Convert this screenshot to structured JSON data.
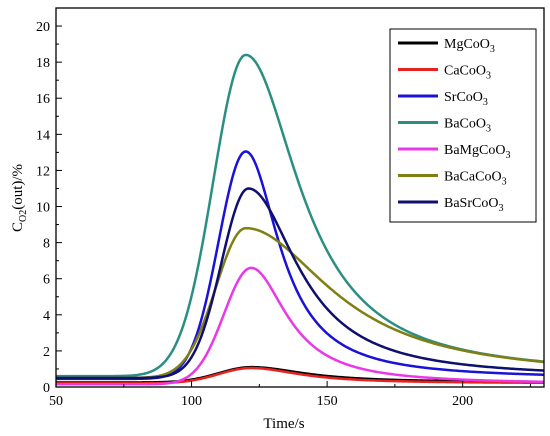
{
  "chart_data": {
    "type": "line",
    "xlabel": "Time/s",
    "ylabel_main": "C",
    "ylabel_sub": "O2",
    "ylabel_rest": "(out)/%",
    "xlim": [
      50,
      230
    ],
    "ylim": [
      0,
      21
    ],
    "xticks": [
      50,
      100,
      150,
      200
    ],
    "yticks": [
      0,
      2,
      4,
      6,
      8,
      10,
      12,
      14,
      16,
      18,
      20
    ],
    "grid": false,
    "legend_position": "top-right",
    "series": [
      {
        "name_main": "MgCoO",
        "name_sub": "3",
        "color": "#000000",
        "baseline": 0.25,
        "peak": 1.1,
        "center": 122,
        "left_width": 12,
        "tail": 24
      },
      {
        "name_main": "CaCoO",
        "name_sub": "3",
        "color": "#e8221e",
        "baseline": 0.2,
        "peak": 1.05,
        "center": 122,
        "left_width": 12,
        "tail": 22
      },
      {
        "name_main": "SrCoO",
        "name_sub": "3",
        "color": "#1a12d8",
        "baseline": 0.45,
        "peak": 13.05,
        "center": 120,
        "left_width": 10,
        "tail": 15
      },
      {
        "name_main": "BaCoO",
        "name_sub": "3",
        "color": "#2a8f82",
        "baseline": 0.6,
        "peak": 18.4,
        "center": 120,
        "left_width": 12,
        "tail": 24
      },
      {
        "name_main": "BaMgCoO",
        "name_sub": "3",
        "color": "#e838e8",
        "baseline": 0.15,
        "peak": 6.6,
        "center": 122,
        "left_width": 10,
        "tail": 16
      },
      {
        "name_main": "BaCaCoO",
        "name_sub": "3",
        "color": "#7f7f14",
        "baseline": 0.5,
        "peak": 8.8,
        "center": 120,
        "left_width": 11,
        "tail": 38
      },
      {
        "name_main": "BaSrCoO",
        "name_sub": "3",
        "color": "#0f0f6e",
        "baseline": 0.5,
        "peak": 11.0,
        "center": 121,
        "left_width": 10,
        "tail": 22
      }
    ]
  }
}
